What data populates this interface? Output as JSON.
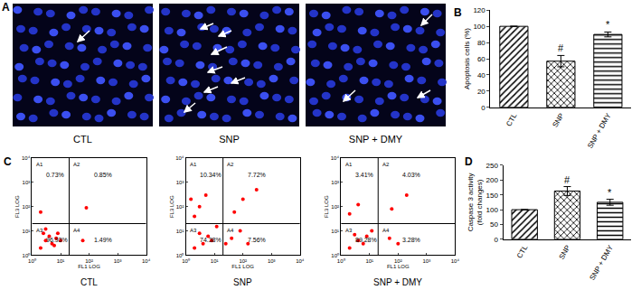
{
  "images": {
    "panel": "A",
    "labels": [
      "CTL",
      "SNP",
      "SNP + DMY"
    ]
  },
  "chart_data": [
    {
      "type": "bar",
      "panel": "B",
      "categories": [
        "CTL",
        "SNP",
        "SNP + DMY"
      ],
      "values": [
        100,
        57,
        90
      ],
      "errors": [
        0,
        7,
        3
      ],
      "color": "#000000",
      "ylabel": "Apoptosis cells (%)",
      "ylim": [
        0,
        120
      ],
      "yticks": [
        0,
        20,
        40,
        60,
        80,
        100,
        120
      ],
      "annotations": [
        {
          "category": "SNP",
          "text": "#"
        },
        {
          "category": "SNP + DMY",
          "text": "*"
        }
      ]
    },
    {
      "type": "scatter",
      "panel": "C",
      "title": "CTL",
      "xlabel": "FL1 LOG",
      "ylabel": "FL3 LOG",
      "log": true,
      "color": "#ff0000",
      "x": [
        2,
        3,
        5,
        4,
        7,
        2.5,
        6,
        8,
        3,
        10,
        60,
        2,
        80
      ],
      "y": [
        2,
        4,
        3,
        6,
        5,
        8,
        2.5,
        8,
        12,
        4,
        4,
        60,
        90
      ],
      "xlim": [
        1,
        10000
      ],
      "ylim": [
        1,
        10000
      ],
      "xticks": [
        {
          "value": 1,
          "label": "10⁰"
        },
        {
          "value": 10,
          "label": "10¹"
        },
        {
          "value": 100,
          "label": "10²"
        },
        {
          "value": 1000,
          "label": "10³"
        },
        {
          "value": 10000,
          "label": "10⁴"
        }
      ],
      "yticks": [
        {
          "value": 1,
          "label": "10⁰"
        },
        {
          "value": 10,
          "label": "10¹"
        },
        {
          "value": 100,
          "label": "10²"
        },
        {
          "value": 1000,
          "label": "10³"
        },
        {
          "value": 10000,
          "label": "10⁴"
        }
      ],
      "gate": {
        "x": 20,
        "y": 20
      },
      "quadrants": [
        {
          "name": "A1",
          "value": 0.73,
          "label": "0.73%"
        },
        {
          "name": "A2",
          "value": 0.85,
          "label": "0.85%"
        },
        {
          "name": "A3",
          "value": 96.93,
          "label": "96.93%"
        },
        {
          "name": "A4",
          "value": 1.49,
          "label": "1.49%"
        }
      ]
    },
    {
      "type": "scatter",
      "title": "SNP",
      "xlabel": "FL1 LOG",
      "ylabel": "FL3 LOG",
      "log": true,
      "color": "#ff0000",
      "x": [
        2,
        4,
        6,
        3,
        8,
        2,
        3,
        5,
        1.5,
        50,
        100,
        300,
        40,
        80,
        150,
        12,
        25
      ],
      "y": [
        2,
        3,
        6,
        8,
        4,
        40,
        100,
        300,
        200,
        60,
        200,
        500,
        5,
        10,
        3,
        15,
        3
      ],
      "xlim": [
        1,
        10000
      ],
      "ylim": [
        1,
        10000
      ],
      "xticks": [
        {
          "value": 1,
          "label": "10⁰"
        },
        {
          "value": 10,
          "label": "10¹"
        },
        {
          "value": 100,
          "label": "10²"
        },
        {
          "value": 1000,
          "label": "10³"
        },
        {
          "value": 10000,
          "label": "10⁴"
        }
      ],
      "yticks": [
        {
          "value": 1,
          "label": "10⁰"
        },
        {
          "value": 10,
          "label": "10¹"
        },
        {
          "value": 100,
          "label": "10²"
        },
        {
          "value": 1000,
          "label": "10³"
        },
        {
          "value": 10000,
          "label": "10⁴"
        }
      ],
      "gate": {
        "x": 20,
        "y": 20
      },
      "quadrants": [
        {
          "name": "A1",
          "value": 10.34,
          "label": "10.34%"
        },
        {
          "name": "A2",
          "value": 7.72,
          "label": "7.72%"
        },
        {
          "name": "A3",
          "value": 74.38,
          "label": "74.38%"
        },
        {
          "name": "A4",
          "value": 7.56,
          "label": "7.56%"
        }
      ]
    },
    {
      "type": "scatter",
      "title": "SNP + DMY",
      "xlabel": "FL1 LOG",
      "ylabel": "FL3 LOG",
      "log": true,
      "color": "#ff0000",
      "x": [
        2,
        4,
        6,
        3,
        8,
        2,
        4,
        60,
        200,
        50,
        100,
        12
      ],
      "y": [
        2,
        4,
        3,
        7,
        6,
        50,
        120,
        80,
        300,
        5,
        3,
        10
      ],
      "xlim": [
        1,
        10000
      ],
      "ylim": [
        1,
        10000
      ],
      "xticks": [
        {
          "value": 1,
          "label": "10⁰"
        },
        {
          "value": 10,
          "label": "10¹"
        },
        {
          "value": 100,
          "label": "10²"
        },
        {
          "value": 1000,
          "label": "10³"
        },
        {
          "value": 10000,
          "label": "10⁴"
        }
      ],
      "yticks": [
        {
          "value": 1,
          "label": "10⁰"
        },
        {
          "value": 10,
          "label": "10¹"
        },
        {
          "value": 100,
          "label": "10²"
        },
        {
          "value": 1000,
          "label": "10³"
        },
        {
          "value": 10000,
          "label": "10⁴"
        }
      ],
      "gate": {
        "x": 20,
        "y": 20
      },
      "quadrants": [
        {
          "name": "A1",
          "value": 3.41,
          "label": "3.41%"
        },
        {
          "name": "A2",
          "value": 4.03,
          "label": "4.03%"
        },
        {
          "name": "A3",
          "value": 89.28,
          "label": "89.28%"
        },
        {
          "name": "A4",
          "value": 3.28,
          "label": "3.28%"
        }
      ]
    },
    {
      "type": "bar",
      "panel": "D",
      "categories": [
        "CTL",
        "SNP",
        "SNP + DMY"
      ],
      "values": [
        100,
        163,
        125
      ],
      "errors": [
        0,
        15,
        10
      ],
      "color": "#000000",
      "ylabel": "Caspase 3 activity (fold changes)",
      "ylim": [
        0,
        250
      ],
      "yticks": [
        0,
        50,
        100,
        150,
        200,
        250
      ],
      "annotations": [
        {
          "category": "SNP",
          "text": "#"
        },
        {
          "category": "SNP + DMY",
          "text": "*"
        }
      ]
    }
  ]
}
